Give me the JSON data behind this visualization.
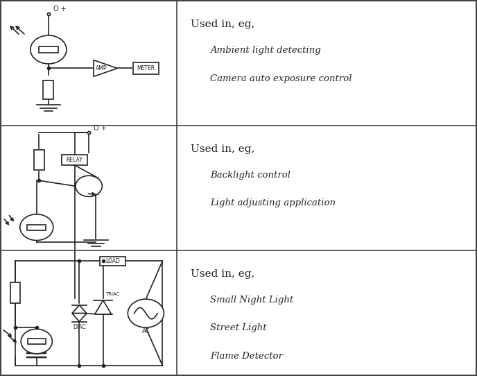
{
  "bg_color": "#ffffff",
  "border_color": "#555555",
  "line_color": "#222222",
  "text_color": "#222222",
  "fig_width": 6.88,
  "fig_height": 5.42,
  "row_dividers": [
    0.667,
    0.333
  ],
  "col_divider": 0.37,
  "right_texts": [
    {
      "header": "Used in, eg,",
      "items": [
        "Ambient light detecting",
        "Camera auto exposure control"
      ]
    },
    {
      "header": "Used in, eg,",
      "items": [
        "Backlight control",
        "Light adjusting application"
      ]
    },
    {
      "header": "Used in, eg,",
      "items": [
        "Small Night Light",
        "Street Light",
        "Flame Detector"
      ]
    }
  ]
}
